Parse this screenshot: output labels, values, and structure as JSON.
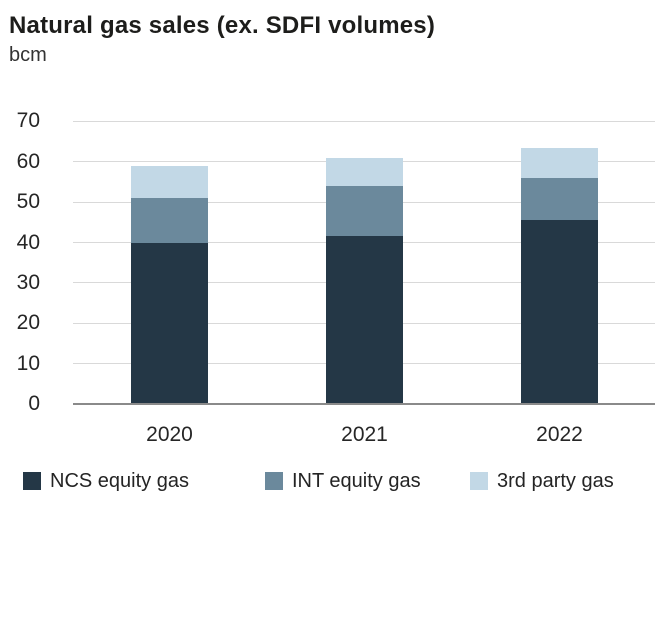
{
  "header": {
    "title": "Natural gas sales (ex. SDFI volumes)",
    "unit": "bcm"
  },
  "chart_data": {
    "type": "bar",
    "stacked": true,
    "title": "Natural gas sales (ex. SDFI volumes)",
    "ylabel": "bcm",
    "categories": [
      "2020",
      "2021",
      "2022"
    ],
    "series": [
      {
        "name": "NCS equity gas",
        "color": "#243746",
        "values": [
          40,
          41.5,
          45.5
        ]
      },
      {
        "name": "INT equity gas",
        "color": "#6b899c",
        "values": [
          11,
          12.5,
          10.5
        ]
      },
      {
        "name": "3rd party gas",
        "color": "#c2d8e6",
        "values": [
          8,
          7,
          7.5
        ]
      }
    ],
    "ylim": [
      0,
      70
    ],
    "yticks": [
      0,
      10,
      20,
      30,
      40,
      50,
      60,
      70
    ],
    "grid": true,
    "legend_position": "bottom",
    "colors": {
      "gridline": "#d9d9d9",
      "axis_line": "#8a8a8a",
      "text": "#242424"
    }
  }
}
